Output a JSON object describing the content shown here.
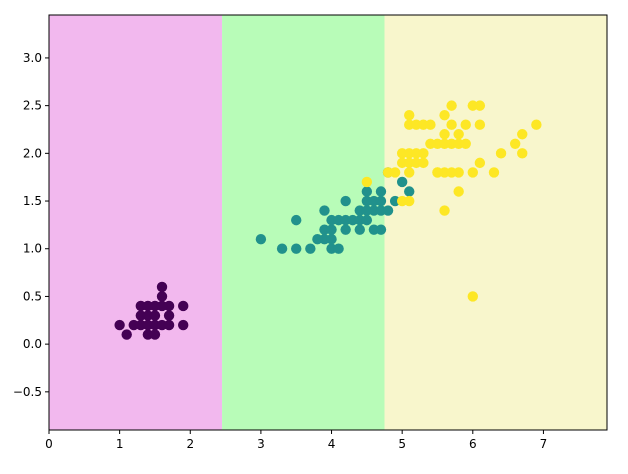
{
  "chart_data": {
    "type": "scatter",
    "title": "",
    "xlabel": "",
    "ylabel": "",
    "xlim": [
      0,
      7.9
    ],
    "ylim": [
      -0.9,
      3.45
    ],
    "grid": false,
    "x_ticks": [
      0,
      1,
      2,
      3,
      4,
      5,
      6,
      7
    ],
    "y_ticks": [
      -0.5,
      0.0,
      0.5,
      1.0,
      1.5,
      2.0,
      2.5,
      3.0
    ],
    "x_tick_labels": [
      "0",
      "1",
      "2",
      "3",
      "4",
      "5",
      "6",
      "7"
    ],
    "y_tick_labels": [
      "−0.5",
      "0.0",
      "0.5",
      "1.0",
      "1.5",
      "2.0",
      "2.5",
      "3.0"
    ],
    "regions": [
      {
        "x_range": [
          0,
          2.45
        ],
        "color": "#f2b8ee"
      },
      {
        "x_range": [
          2.45,
          4.75
        ],
        "color": "#b8fcb8"
      },
      {
        "x_range": [
          4.75,
          7.9
        ],
        "color": "#f8f6cc"
      }
    ],
    "series": [
      {
        "color": "#440154",
        "points": [
          [
            1.6,
            0.6
          ],
          [
            1.3,
            0.4
          ],
          [
            1.5,
            0.4
          ],
          [
            1.7,
            0.4
          ],
          [
            1.9,
            0.4
          ],
          [
            1.0,
            0.2
          ],
          [
            1.2,
            0.2
          ],
          [
            1.3,
            0.2
          ],
          [
            1.4,
            0.2
          ],
          [
            1.5,
            0.2
          ],
          [
            1.6,
            0.2
          ],
          [
            1.7,
            0.2
          ],
          [
            1.9,
            0.2
          ],
          [
            1.3,
            0.3
          ],
          [
            1.4,
            0.3
          ],
          [
            1.5,
            0.3
          ],
          [
            1.7,
            0.3
          ],
          [
            1.4,
            0.1
          ],
          [
            1.5,
            0.1
          ],
          [
            1.1,
            0.1
          ],
          [
            1.6,
            0.4
          ],
          [
            1.4,
            0.4
          ],
          [
            1.6,
            0.5
          ]
        ]
      },
      {
        "color": "#21918c",
        "points": [
          [
            3.0,
            1.1
          ],
          [
            3.3,
            1.0
          ],
          [
            3.5,
            1.0
          ],
          [
            3.7,
            1.0
          ],
          [
            3.9,
            1.1
          ],
          [
            4.0,
            1.0
          ],
          [
            4.1,
            1.0
          ],
          [
            3.5,
            1.3
          ],
          [
            3.9,
            1.2
          ],
          [
            4.0,
            1.2
          ],
          [
            3.8,
            1.1
          ],
          [
            3.9,
            1.4
          ],
          [
            4.0,
            1.3
          ],
          [
            4.1,
            1.3
          ],
          [
            4.2,
            1.3
          ],
          [
            4.3,
            1.3
          ],
          [
            4.4,
            1.3
          ],
          [
            4.5,
            1.3
          ],
          [
            4.2,
            1.2
          ],
          [
            4.4,
            1.2
          ],
          [
            4.0,
            1.1
          ],
          [
            4.6,
            1.2
          ],
          [
            4.4,
            1.4
          ],
          [
            4.5,
            1.4
          ],
          [
            4.6,
            1.4
          ],
          [
            4.7,
            1.4
          ],
          [
            4.8,
            1.4
          ],
          [
            4.2,
            1.5
          ],
          [
            4.5,
            1.5
          ],
          [
            4.6,
            1.5
          ],
          [
            4.7,
            1.5
          ],
          [
            4.9,
            1.5
          ],
          [
            4.5,
            1.6
          ],
          [
            4.7,
            1.6
          ],
          [
            5.1,
            1.6
          ],
          [
            4.8,
            1.8
          ],
          [
            5.0,
            1.7
          ],
          [
            4.7,
            1.2
          ]
        ]
      },
      {
        "color": "#fde725",
        "points": [
          [
            5.1,
            2.4
          ],
          [
            5.3,
            2.3
          ],
          [
            5.4,
            2.3
          ],
          [
            5.1,
            2.3
          ],
          [
            5.0,
            2.0
          ],
          [
            5.1,
            2.0
          ],
          [
            5.2,
            2.0
          ],
          [
            5.3,
            2.0
          ],
          [
            5.0,
            1.9
          ],
          [
            5.1,
            1.9
          ],
          [
            5.2,
            1.9
          ],
          [
            5.1,
            1.8
          ],
          [
            5.5,
            1.8
          ],
          [
            5.6,
            1.8
          ],
          [
            5.0,
            1.5
          ],
          [
            5.1,
            1.5
          ],
          [
            4.8,
            1.8
          ],
          [
            4.9,
            1.8
          ],
          [
            4.5,
            1.7
          ],
          [
            5.7,
            2.5
          ],
          [
            6.0,
            2.5
          ],
          [
            6.1,
            2.5
          ],
          [
            5.6,
            2.4
          ],
          [
            5.5,
            2.1
          ],
          [
            5.8,
            2.2
          ],
          [
            5.6,
            2.2
          ],
          [
            5.7,
            2.3
          ],
          [
            5.9,
            2.3
          ],
          [
            5.4,
            2.1
          ],
          [
            5.6,
            2.1
          ],
          [
            5.7,
            2.1
          ],
          [
            5.8,
            2.1
          ],
          [
            6.1,
            2.3
          ],
          [
            6.6,
            2.1
          ],
          [
            6.7,
            2.2
          ],
          [
            6.9,
            2.3
          ],
          [
            6.1,
            1.9
          ],
          [
            6.4,
            2.0
          ],
          [
            6.7,
            2.0
          ],
          [
            6.3,
            1.8
          ],
          [
            5.8,
            1.8
          ],
          [
            5.8,
            1.6
          ],
          [
            5.6,
            1.4
          ],
          [
            6.0,
            1.8
          ],
          [
            6.0,
            0.5
          ],
          [
            5.2,
            2.3
          ],
          [
            5.9,
            2.1
          ],
          [
            5.3,
            1.9
          ],
          [
            5.5,
            1.8
          ],
          [
            5.7,
            1.8
          ]
        ]
      }
    ]
  }
}
